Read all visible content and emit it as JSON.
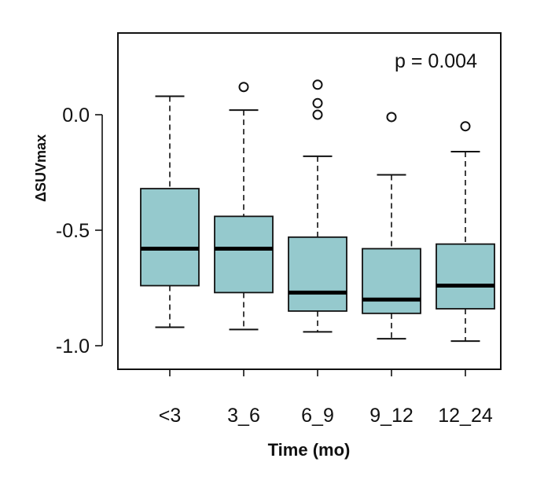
{
  "chart_data": {
    "type": "box",
    "title": "",
    "xlabel": "Time (mo)",
    "ylabel": "ΔSUVmax",
    "annotation": "p = 0.004",
    "ylim": [
      -1.1,
      0.35
    ],
    "yticks": [
      0.0,
      -0.5,
      -1.0
    ],
    "ytick_labels": [
      "0.0",
      "-0.5",
      "-1.0"
    ],
    "categories": [
      "<3",
      "3_6",
      "6_9",
      "9_12",
      "12_24"
    ],
    "boxes": [
      {
        "category": "<3",
        "whisker_low": -0.92,
        "q1": -0.74,
        "median": -0.58,
        "q3": -0.32,
        "whisker_high": 0.08,
        "outliers": []
      },
      {
        "category": "3_6",
        "whisker_low": -0.93,
        "q1": -0.77,
        "median": -0.58,
        "q3": -0.44,
        "whisker_high": 0.02,
        "outliers": [
          0.12
        ]
      },
      {
        "category": "6_9",
        "whisker_low": -0.94,
        "q1": -0.85,
        "median": -0.77,
        "q3": -0.53,
        "whisker_high": -0.18,
        "outliers": [
          0.13,
          0.05,
          0.0
        ]
      },
      {
        "category": "9_12",
        "whisker_low": -0.97,
        "q1": -0.86,
        "median": -0.8,
        "q3": -0.58,
        "whisker_high": -0.26,
        "outliers": [
          -0.01
        ]
      },
      {
        "category": "12_24",
        "whisker_low": -0.98,
        "q1": -0.84,
        "median": -0.74,
        "q3": -0.56,
        "whisker_high": -0.16,
        "outliers": [
          -0.05
        ]
      }
    ],
    "grid": false,
    "box_fill": "#95c9cd",
    "stroke_color": "#111111"
  }
}
